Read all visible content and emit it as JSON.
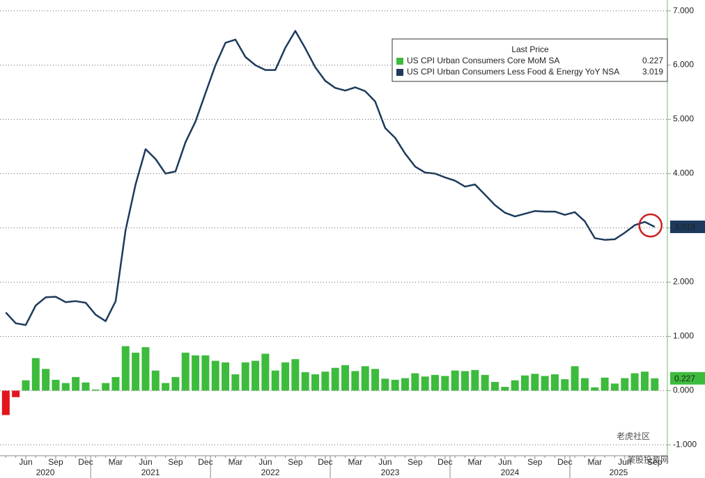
{
  "chart_data": {
    "type": "bar_line",
    "categories": [
      null,
      null,
      "Jun",
      null,
      null,
      "Sep",
      null,
      null,
      "Dec",
      null,
      null,
      "Mar",
      null,
      null,
      "Jun",
      null,
      null,
      "Sep",
      null,
      null,
      "Dec",
      null,
      null,
      "Mar",
      null,
      null,
      "Jun",
      null,
      null,
      "Sep",
      null,
      null,
      "Dec",
      null,
      null,
      "Mar",
      null,
      null,
      "Jun",
      null,
      null,
      "Sep",
      null,
      null,
      "Dec",
      null,
      null,
      "Mar",
      null,
      null,
      "Jun",
      null,
      null,
      "Sep",
      null,
      null,
      "Dec",
      null,
      null,
      "Mar",
      null,
      null,
      "Jun",
      null,
      null,
      "Sep"
    ],
    "years": [
      "2020",
      "2021",
      "2022",
      "2023",
      "2024",
      "2025"
    ],
    "legend_title": "Last Price",
    "series": [
      {
        "name": "US CPI Urban Consumers Core MoM SA",
        "kind": "bar",
        "color": "#3dbb3d",
        "negative_color": "#e3141c",
        "values": [
          -0.45,
          -0.12,
          0.19,
          0.6,
          0.4,
          0.2,
          0.14,
          0.25,
          0.15,
          0.02,
          0.14,
          0.25,
          0.82,
          0.7,
          0.8,
          0.37,
          0.14,
          0.25,
          0.7,
          0.65,
          0.65,
          0.55,
          0.52,
          0.3,
          0.52,
          0.55,
          0.68,
          0.37,
          0.52,
          0.58,
          0.34,
          0.3,
          0.35,
          0.42,
          0.47,
          0.36,
          0.45,
          0.4,
          0.22,
          0.2,
          0.23,
          0.32,
          0.26,
          0.29,
          0.27,
          0.37,
          0.36,
          0.38,
          0.29,
          0.16,
          0.07,
          0.19,
          0.28,
          0.31,
          0.27,
          0.3,
          0.21,
          0.45,
          0.23,
          0.06,
          0.24,
          0.13,
          0.23,
          0.32,
          0.35,
          0.227
        ]
      },
      {
        "name": "US CPI Urban Consumers Less Food & Energy YoY NSA",
        "kind": "line",
        "color": "#1d3a5c",
        "values": [
          1.44,
          1.24,
          1.21,
          1.57,
          1.72,
          1.73,
          1.63,
          1.65,
          1.62,
          1.4,
          1.28,
          1.65,
          2.96,
          3.8,
          4.45,
          4.27,
          4.0,
          4.04,
          4.58,
          4.96,
          5.48,
          6.0,
          6.41,
          6.47,
          6.15,
          6.0,
          5.91,
          5.91,
          6.32,
          6.63,
          6.31,
          5.96,
          5.71,
          5.58,
          5.53,
          5.59,
          5.52,
          5.33,
          4.84,
          4.66,
          4.37,
          4.13,
          4.02,
          4.0,
          3.93,
          3.87,
          3.76,
          3.8,
          3.61,
          3.42,
          3.28,
          3.21,
          3.26,
          3.31,
          3.3,
          3.3,
          3.24,
          3.29,
          3.12,
          2.81,
          2.78,
          2.79,
          2.91,
          3.05,
          3.11,
          3.019
        ]
      }
    ],
    "ylim": [
      -1.2,
      7.2
    ],
    "yticks": [
      {
        "value": -1,
        "label": "-1.000"
      },
      {
        "value": 0,
        "label": "0.000"
      },
      {
        "value": 1,
        "label": "1.000"
      },
      {
        "value": 2,
        "label": "2.000"
      },
      {
        "value": 3,
        "label": "3.000"
      },
      {
        "value": 4,
        "label": "4.000"
      },
      {
        "value": 5,
        "label": "5.000"
      },
      {
        "value": 6,
        "label": "6.000"
      },
      {
        "value": 7,
        "label": "7.000"
      }
    ],
    "grid": true,
    "watermark": [
      "老虎社区",
      "美股投资网"
    ]
  }
}
